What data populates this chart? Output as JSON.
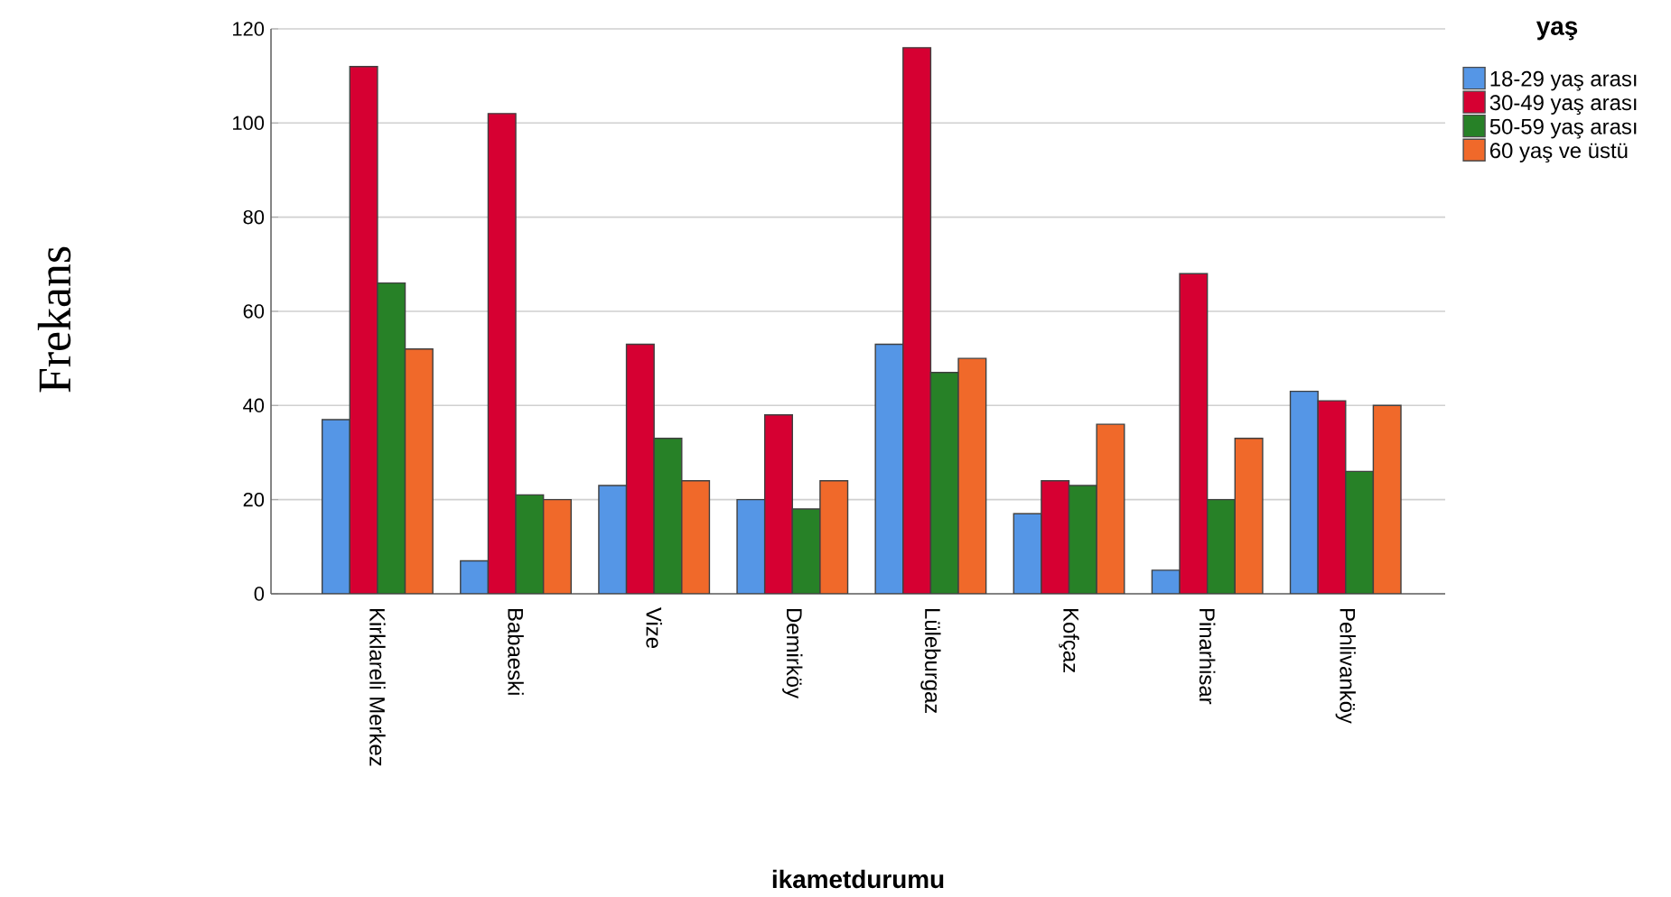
{
  "chart_data": {
    "type": "bar",
    "xlabel": "ikametdurumu",
    "ylabel": "Frekans",
    "legend_title": "yaş",
    "categories": [
      "Kirklareli Merkez",
      "Babaeski",
      "Vize",
      "Demirköy",
      "Lüleburgaz",
      "Kofçaz",
      "Pinarhisar",
      "Pehlivanköy"
    ],
    "series": [
      {
        "name": "18-29 yaş arası",
        "color": "#5596e6",
        "values": [
          37,
          7,
          23,
          20,
          53,
          17,
          5,
          43
        ]
      },
      {
        "name": "30-49 yaş arası",
        "color": "#d60032",
        "values": [
          112,
          102,
          53,
          38,
          116,
          24,
          68,
          41
        ]
      },
      {
        "name": "50-59 yaş arası",
        "color": "#278127",
        "values": [
          66,
          21,
          33,
          18,
          47,
          23,
          20,
          26
        ]
      },
      {
        "name": "60 yaş ve üstü",
        "color": "#f0692a",
        "values": [
          52,
          20,
          24,
          24,
          50,
          36,
          33,
          40
        ]
      }
    ],
    "ylim": [
      0,
      120
    ],
    "yticks": [
      0,
      20,
      40,
      60,
      80,
      100,
      120
    ],
    "grid": "y",
    "legend": "top right"
  }
}
